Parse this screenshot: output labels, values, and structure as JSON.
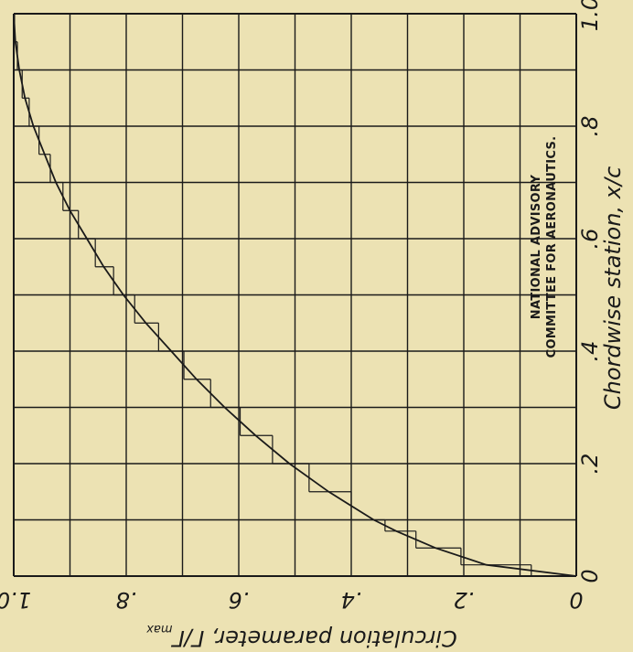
{
  "chart_data": {
    "type": "line",
    "note_lines": [
      "NATIONAL ADVISORY",
      "COMMITTEE FOR AERONAUTICS."
    ],
    "xlabel": {
      "main": "Chordwise  station,  x/c"
    },
    "ylabel": {
      "main": "Circulation  parameter,  Γ/Γ",
      "subscript": "max"
    },
    "x_tick_labels": [
      "0",
      ".2",
      ".4",
      ".6",
      ".8",
      "1.0"
    ],
    "y_tick_labels": [
      "0",
      ".2",
      ".4",
      ".6",
      ".8",
      "1.0"
    ],
    "xlim": [
      0,
      1.0
    ],
    "ylim": [
      0,
      1.0
    ],
    "grid": true,
    "series": [
      {
        "style": "smooth",
        "x": [
          0.0,
          0.02,
          0.05,
          0.08,
          0.1,
          0.15,
          0.2,
          0.25,
          0.3,
          0.35,
          0.4,
          0.45,
          0.5,
          0.55,
          0.6,
          0.65,
          0.7,
          0.75,
          0.8,
          0.85,
          0.9,
          0.95,
          1.0
        ],
        "y": [
          0.0,
          0.16,
          0.25,
          0.32,
          0.36,
          0.44,
          0.51,
          0.57,
          0.625,
          0.675,
          0.72,
          0.765,
          0.805,
          0.84,
          0.87,
          0.9,
          0.925,
          0.945,
          0.965,
          0.98,
          0.99,
          0.997,
          1.0
        ]
      },
      {
        "style": "step",
        "x": [
          0.0,
          0.02,
          0.05,
          0.08,
          0.1,
          0.15,
          0.2,
          0.25,
          0.3,
          0.35,
          0.4,
          0.45,
          0.5,
          0.55,
          0.6,
          0.65,
          0.7,
          0.75,
          0.8,
          0.85,
          0.9,
          0.95,
          1.0
        ],
        "y": [
          0.0,
          0.16,
          0.25,
          0.32,
          0.36,
          0.44,
          0.51,
          0.57,
          0.625,
          0.675,
          0.72,
          0.765,
          0.805,
          0.84,
          0.87,
          0.9,
          0.925,
          0.945,
          0.965,
          0.98,
          0.99,
          0.997,
          1.0
        ]
      }
    ],
    "colors": {
      "background": "#ece2b3",
      "ink": "#1a1a1a"
    }
  }
}
